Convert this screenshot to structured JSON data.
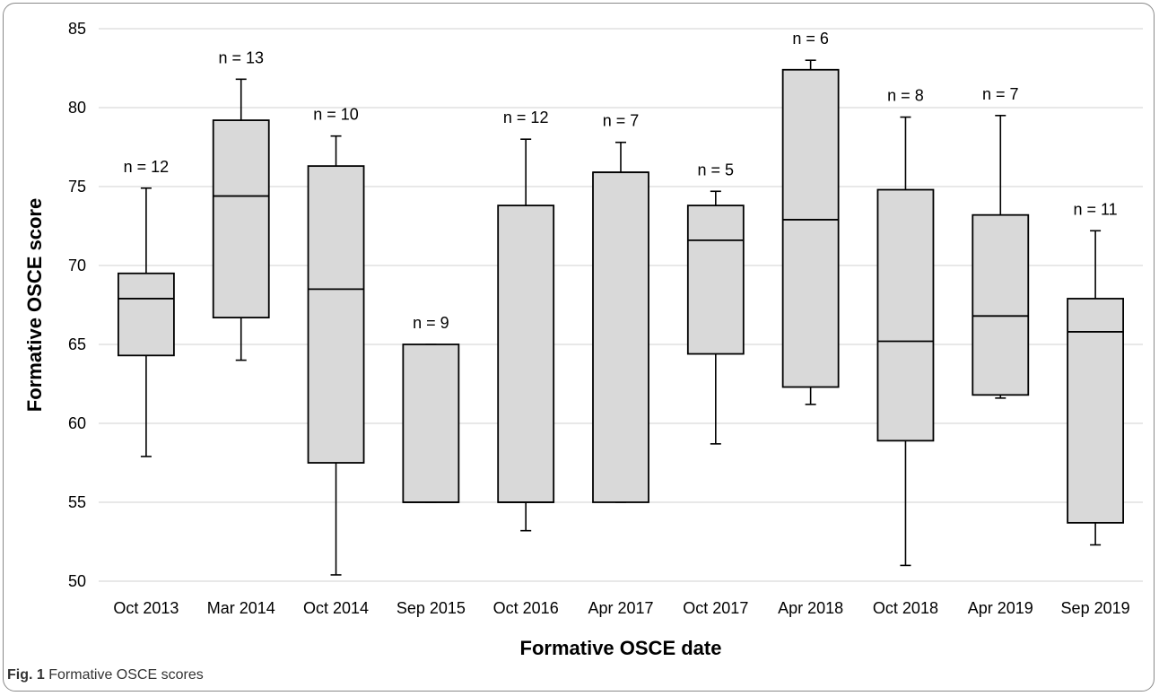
{
  "chart_data": {
    "type": "boxplot",
    "xlabel": "Formative OSCE date",
    "ylabel": "Formative OSCE score",
    "ylim": [
      50,
      85
    ],
    "yticks": [
      50,
      55,
      60,
      65,
      70,
      75,
      80,
      85
    ],
    "grid": true,
    "categories": [
      "Oct 2013",
      "Mar 2014",
      "Oct 2014",
      "Sep 2015",
      "Oct 2016",
      "Apr 2017",
      "Oct 2017",
      "Apr 2018",
      "Oct 2018",
      "Apr 2019",
      "Sep 2019"
    ],
    "n_labels": [
      "n = 12",
      "n = 13",
      "n = 10",
      "n = 9",
      "n = 12",
      "n = 7",
      "n = 5",
      "n = 6",
      "n = 8",
      "n = 7",
      "n = 11"
    ],
    "boxes": [
      {
        "min": 57.9,
        "q1": 64.3,
        "median": 67.9,
        "q3": 69.5,
        "max": 74.9
      },
      {
        "min": 64.0,
        "q1": 66.7,
        "median": 74.4,
        "q3": 79.2,
        "max": 81.8
      },
      {
        "min": 50.4,
        "q1": 57.5,
        "median": 68.5,
        "q3": 76.3,
        "max": 78.2
      },
      {
        "min": 55.0,
        "q1": 55.0,
        "median": 55.0,
        "q3": 65.0,
        "max": 65.0
      },
      {
        "min": 53.2,
        "q1": 55.0,
        "median": 55.0,
        "q3": 73.8,
        "max": 78.0
      },
      {
        "min": 55.0,
        "q1": 55.0,
        "median": 75.9,
        "q3": 75.9,
        "max": 77.8
      },
      {
        "min": 58.7,
        "q1": 64.4,
        "median": 71.6,
        "q3": 73.8,
        "max": 74.7
      },
      {
        "min": 61.2,
        "q1": 62.3,
        "median": 72.9,
        "q3": 82.4,
        "max": 83.0
      },
      {
        "min": 51.0,
        "q1": 58.9,
        "median": 65.2,
        "q3": 74.8,
        "max": 79.4
      },
      {
        "min": 61.6,
        "q1": 61.8,
        "median": 66.8,
        "q3": 73.2,
        "max": 79.5
      },
      {
        "min": 52.3,
        "q1": 53.7,
        "median": 65.8,
        "q3": 67.9,
        "max": 72.2
      }
    ],
    "box_fill": "#d9d9d9",
    "grid_color": "#d9d9d9"
  },
  "caption": {
    "label": "Fig. 1",
    "text": "Formative OSCE scores"
  }
}
